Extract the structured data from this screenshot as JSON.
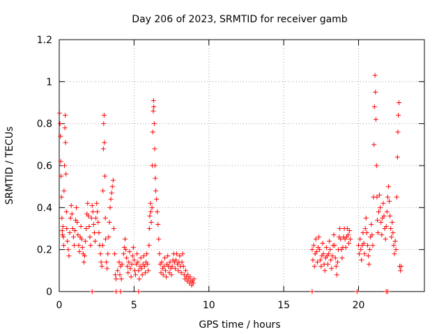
{
  "chart_data": {
    "type": "scatter",
    "title": "Day 206 of 2023, SRMTID for receiver gamb",
    "xlabel": "GPS time / hours",
    "ylabel": "SRMTID / TECUs",
    "xlim": [
      0,
      24.4
    ],
    "ylim": [
      0,
      1.2
    ],
    "xticks": [
      0,
      5,
      10,
      15,
      20
    ],
    "xtick_labels": [
      "0",
      "5",
      "10",
      "15",
      "20"
    ],
    "yticks": [
      0,
      0.2,
      0.4,
      0.6,
      0.8,
      1.0,
      1.2
    ],
    "ytick_labels": [
      "0",
      "0.2",
      "0.4",
      "0.6",
      "0.8",
      "1",
      "1.2"
    ],
    "grid": true,
    "marker": "+",
    "color": "#ff0000",
    "series": [
      {
        "name": "SRMTID",
        "points": [
          [
            0.02,
            0.85
          ],
          [
            0.05,
            0.8
          ],
          [
            0.08,
            0.74
          ],
          [
            0.1,
            0.62
          ],
          [
            0.12,
            0.55
          ],
          [
            0.15,
            0.45
          ],
          [
            0.18,
            0.35
          ],
          [
            0.2,
            0.29
          ],
          [
            0.22,
            0.27
          ],
          [
            0.25,
            0.31
          ],
          [
            0.28,
            0.26
          ],
          [
            0.3,
            0.22
          ],
          [
            0.32,
            0.48
          ],
          [
            0.35,
            0.6
          ],
          [
            0.38,
            0.78
          ],
          [
            0.4,
            0.84
          ],
          [
            0.42,
            0.71
          ],
          [
            0.45,
            0.56
          ],
          [
            0.48,
            0.38
          ],
          [
            0.5,
            0.3
          ],
          [
            0.55,
            0.24
          ],
          [
            0.6,
            0.2
          ],
          [
            0.65,
            0.17
          ],
          [
            0.7,
            0.28
          ],
          [
            0.75,
            0.35
          ],
          [
            0.8,
            0.41
          ],
          [
            0.85,
            0.37
          ],
          [
            0.9,
            0.3
          ],
          [
            0.95,
            0.26
          ],
          [
            1.0,
            0.22
          ],
          [
            1.05,
            0.29
          ],
          [
            1.1,
            0.34
          ],
          [
            1.15,
            0.4
          ],
          [
            1.2,
            0.33
          ],
          [
            1.25,
            0.27
          ],
          [
            1.3,
            0.22
          ],
          [
            1.35,
            0.19
          ],
          [
            1.4,
            0.26
          ],
          [
            1.45,
            0.31
          ],
          [
            1.5,
            0.25
          ],
          [
            1.55,
            0.21
          ],
          [
            1.6,
            0.18
          ],
          [
            1.65,
            0.14
          ],
          [
            1.7,
            0.17
          ],
          [
            1.75,
            0.24
          ],
          [
            1.8,
            0.3
          ],
          [
            1.85,
            0.37
          ],
          [
            1.9,
            0.42
          ],
          [
            1.95,
            0.36
          ],
          [
            2.0,
            0.31
          ],
          [
            2.05,
            0.26
          ],
          [
            2.1,
            0.22
          ],
          [
            2.15,
            0.35
          ],
          [
            2.2,
            0.41
          ],
          [
            2.25,
            0.38
          ],
          [
            2.3,
            0.32
          ],
          [
            2.35,
            0.28
          ],
          [
            2.4,
            0.24
          ],
          [
            2.45,
            0.35
          ],
          [
            2.5,
            0.42
          ],
          [
            2.55,
            0.38
          ],
          [
            2.6,
            0.33
          ],
          [
            2.65,
            0.28
          ],
          [
            2.7,
            0.22
          ],
          [
            2.75,
            0.18
          ],
          [
            2.8,
            0.14
          ],
          [
            2.85,
            0.12
          ],
          [
            2.9,
            0.22
          ],
          [
            2.92,
            0.48
          ],
          [
            2.95,
            0.68
          ],
          [
            2.97,
            0.8
          ],
          [
            3.0,
            0.84
          ],
          [
            3.02,
            0.71
          ],
          [
            3.05,
            0.55
          ],
          [
            3.08,
            0.35
          ],
          [
            3.1,
            0.25
          ],
          [
            3.15,
            0.14
          ],
          [
            3.2,
            0.11
          ],
          [
            3.25,
            0.18
          ],
          [
            3.3,
            0.26
          ],
          [
            3.35,
            0.33
          ],
          [
            3.4,
            0.4
          ],
          [
            3.45,
            0.44
          ],
          [
            3.5,
            0.47
          ],
          [
            3.55,
            0.5
          ],
          [
            3.6,
            0.53
          ],
          [
            3.65,
            0.3
          ],
          [
            3.7,
            0.18
          ],
          [
            3.75,
            0.08
          ],
          [
            3.8,
            0.06
          ],
          [
            3.9,
            0.1
          ],
          [
            4.0,
            0.14
          ],
          [
            4.05,
            0.08
          ],
          [
            4.1,
            0.12
          ],
          [
            4.15,
            0.06
          ],
          [
            4.2,
            0.13
          ],
          [
            4.3,
            0.18
          ],
          [
            4.35,
            0.21
          ],
          [
            4.4,
            0.25
          ],
          [
            4.45,
            0.2
          ],
          [
            4.5,
            0.16
          ],
          [
            4.55,
            0.12
          ],
          [
            4.6,
            0.09
          ],
          [
            4.65,
            0.14
          ],
          [
            4.7,
            0.19
          ],
          [
            4.75,
            0.11
          ],
          [
            4.8,
            0.07
          ],
          [
            4.85,
            0.13
          ],
          [
            4.9,
            0.17
          ],
          [
            4.95,
            0.21
          ],
          [
            5.0,
            0.15
          ],
          [
            5.05,
            0.1
          ],
          [
            5.1,
            0.08
          ],
          [
            5.15,
            0.13
          ],
          [
            5.2,
            0.18
          ],
          [
            5.25,
            0.14
          ],
          [
            5.3,
            0.1
          ],
          [
            5.35,
            0.06
          ],
          [
            5.4,
            0.12
          ],
          [
            5.45,
            0.16
          ],
          [
            5.5,
            0.11
          ],
          [
            5.55,
            0.08
          ],
          [
            5.6,
            0.13
          ],
          [
            5.65,
            0.17
          ],
          [
            5.7,
            0.12
          ],
          [
            5.75,
            0.09
          ],
          [
            5.8,
            0.14
          ],
          [
            5.85,
            0.18
          ],
          [
            5.9,
            0.13
          ],
          [
            5.95,
            0.1
          ],
          [
            6.0,
            0.22
          ],
          [
            6.02,
            0.3
          ],
          [
            6.05,
            0.36
          ],
          [
            6.1,
            0.42
          ],
          [
            6.12,
            0.38
          ],
          [
            6.15,
            0.33
          ],
          [
            6.2,
            0.4
          ],
          [
            6.22,
            0.6
          ],
          [
            6.25,
            0.76
          ],
          [
            6.28,
            0.86
          ],
          [
            6.3,
            0.91
          ],
          [
            6.32,
            0.88
          ],
          [
            6.35,
            0.8
          ],
          [
            6.38,
            0.68
          ],
          [
            6.4,
            0.6
          ],
          [
            6.42,
            0.54
          ],
          [
            6.45,
            0.48
          ],
          [
            6.5,
            0.44
          ],
          [
            6.55,
            0.38
          ],
          [
            6.6,
            0.32
          ],
          [
            6.65,
            0.25
          ],
          [
            6.7,
            0.18
          ],
          [
            6.75,
            0.13
          ],
          [
            6.8,
            0.09
          ],
          [
            6.85,
            0.14
          ],
          [
            6.9,
            0.11
          ],
          [
            6.95,
            0.08
          ],
          [
            7.0,
            0.12
          ],
          [
            7.05,
            0.16
          ],
          [
            7.1,
            0.1
          ],
          [
            7.15,
            0.07
          ],
          [
            7.2,
            0.13
          ],
          [
            7.25,
            0.17
          ],
          [
            7.3,
            0.12
          ],
          [
            7.35,
            0.09
          ],
          [
            7.4,
            0.14
          ],
          [
            7.45,
            0.11
          ],
          [
            7.5,
            0.08
          ],
          [
            7.55,
            0.12
          ],
          [
            7.6,
            0.15
          ],
          [
            7.65,
            0.18
          ],
          [
            7.7,
            0.14
          ],
          [
            7.75,
            0.11
          ],
          [
            7.8,
            0.15
          ],
          [
            7.85,
            0.18
          ],
          [
            7.9,
            0.13
          ],
          [
            7.95,
            0.1
          ],
          [
            8.0,
            0.14
          ],
          [
            8.05,
            0.17
          ],
          [
            8.1,
            0.12
          ],
          [
            8.15,
            0.09
          ],
          [
            8.2,
            0.14
          ],
          [
            8.25,
            0.18
          ],
          [
            8.3,
            0.12
          ],
          [
            8.35,
            0.08
          ],
          [
            8.4,
            0.06
          ],
          [
            8.45,
            0.1
          ],
          [
            8.5,
            0.07
          ],
          [
            8.55,
            0.05
          ],
          [
            8.6,
            0.08
          ],
          [
            8.65,
            0.06
          ],
          [
            8.7,
            0.04
          ],
          [
            8.75,
            0.07
          ],
          [
            8.8,
            0.05
          ],
          [
            8.85,
            0.03
          ],
          [
            8.9,
            0.05
          ],
          [
            8.95,
            0.04
          ],
          [
            9.0,
            0.06
          ],
          [
            16.9,
            0.2
          ],
          [
            16.95,
            0.15
          ],
          [
            17.0,
            0.22
          ],
          [
            17.05,
            0.12
          ],
          [
            17.1,
            0.18
          ],
          [
            17.15,
            0.25
          ],
          [
            17.2,
            0.19
          ],
          [
            17.25,
            0.14
          ],
          [
            17.3,
            0.21
          ],
          [
            17.35,
            0.26
          ],
          [
            17.4,
            0.2
          ],
          [
            17.45,
            0.15
          ],
          [
            17.5,
            0.12
          ],
          [
            17.55,
            0.17
          ],
          [
            17.6,
            0.23
          ],
          [
            17.65,
            0.18
          ],
          [
            17.7,
            0.13
          ],
          [
            17.75,
            0.1
          ],
          [
            17.8,
            0.16
          ],
          [
            17.85,
            0.21
          ],
          [
            17.9,
            0.17
          ],
          [
            17.95,
            0.13
          ],
          [
            18.0,
            0.18
          ],
          [
            18.05,
            0.24
          ],
          [
            18.1,
            0.2
          ],
          [
            18.15,
            0.15
          ],
          [
            18.2,
            0.11
          ],
          [
            18.25,
            0.17
          ],
          [
            18.3,
            0.22
          ],
          [
            18.35,
            0.27
          ],
          [
            18.4,
            0.22
          ],
          [
            18.45,
            0.16
          ],
          [
            18.5,
            0.12
          ],
          [
            18.55,
            0.08
          ],
          [
            18.6,
            0.14
          ],
          [
            18.65,
            0.2
          ],
          [
            18.7,
            0.26
          ],
          [
            18.75,
            0.3
          ],
          [
            18.8,
            0.25
          ],
          [
            18.85,
            0.2
          ],
          [
            18.9,
            0.16
          ],
          [
            18.95,
            0.21
          ],
          [
            19.0,
            0.26
          ],
          [
            19.05,
            0.3
          ],
          [
            19.1,
            0.25
          ],
          [
            19.15,
            0.21
          ],
          [
            19.2,
            0.26
          ],
          [
            19.25,
            0.3
          ],
          [
            19.3,
            0.27
          ],
          [
            19.35,
            0.23
          ],
          [
            19.4,
            0.29
          ],
          [
            19.45,
            0.25
          ],
          [
            20.0,
            0.22
          ],
          [
            20.05,
            0.18
          ],
          [
            20.1,
            0.25
          ],
          [
            20.15,
            0.2
          ],
          [
            20.2,
            0.15
          ],
          [
            20.25,
            0.22
          ],
          [
            20.3,
            0.28
          ],
          [
            20.35,
            0.23
          ],
          [
            20.4,
            0.18
          ],
          [
            20.45,
            0.3
          ],
          [
            20.5,
            0.35
          ],
          [
            20.55,
            0.28
          ],
          [
            20.6,
            0.22
          ],
          [
            20.65,
            0.17
          ],
          [
            20.7,
            0.13
          ],
          [
            20.75,
            0.2
          ],
          [
            20.8,
            0.26
          ],
          [
            20.85,
            0.32
          ],
          [
            20.9,
            0.27
          ],
          [
            20.95,
            0.22
          ],
          [
            21.0,
            0.45
          ],
          [
            21.03,
            0.7
          ],
          [
            21.06,
            0.88
          ],
          [
            21.1,
            1.03
          ],
          [
            21.13,
            0.95
          ],
          [
            21.16,
            0.82
          ],
          [
            21.2,
            0.6
          ],
          [
            21.23,
            0.45
          ],
          [
            21.26,
            0.34
          ],
          [
            21.3,
            0.28
          ],
          [
            21.35,
            0.38
          ],
          [
            21.4,
            0.46
          ],
          [
            21.45,
            0.4
          ],
          [
            21.5,
            0.33
          ],
          [
            21.55,
            0.27
          ],
          [
            21.6,
            0.35
          ],
          [
            21.65,
            0.42
          ],
          [
            21.7,
            0.36
          ],
          [
            21.75,
            0.3
          ],
          [
            21.8,
            0.25
          ],
          [
            21.85,
            0.31
          ],
          [
            21.9,
            0.38
          ],
          [
            21.95,
            0.45
          ],
          [
            22.0,
            0.5
          ],
          [
            22.05,
            0.43
          ],
          [
            22.1,
            0.36
          ],
          [
            22.15,
            0.3
          ],
          [
            22.2,
            0.26
          ],
          [
            22.25,
            0.33
          ],
          [
            22.3,
            0.28
          ],
          [
            22.35,
            0.22
          ],
          [
            22.4,
            0.18
          ],
          [
            22.45,
            0.24
          ],
          [
            22.5,
            0.2
          ],
          [
            22.55,
            0.45
          ],
          [
            22.6,
            0.64
          ],
          [
            22.63,
            0.76
          ],
          [
            22.66,
            0.84
          ],
          [
            22.7,
            0.9
          ],
          [
            22.75,
            0.12
          ],
          [
            22.8,
            0.1
          ],
          [
            22.85,
            0.12
          ]
        ]
      }
    ],
    "zero_points": [
      2.2,
      3.8,
      4.1,
      5.3,
      16.9,
      19.9,
      21.85,
      21.95
    ]
  }
}
